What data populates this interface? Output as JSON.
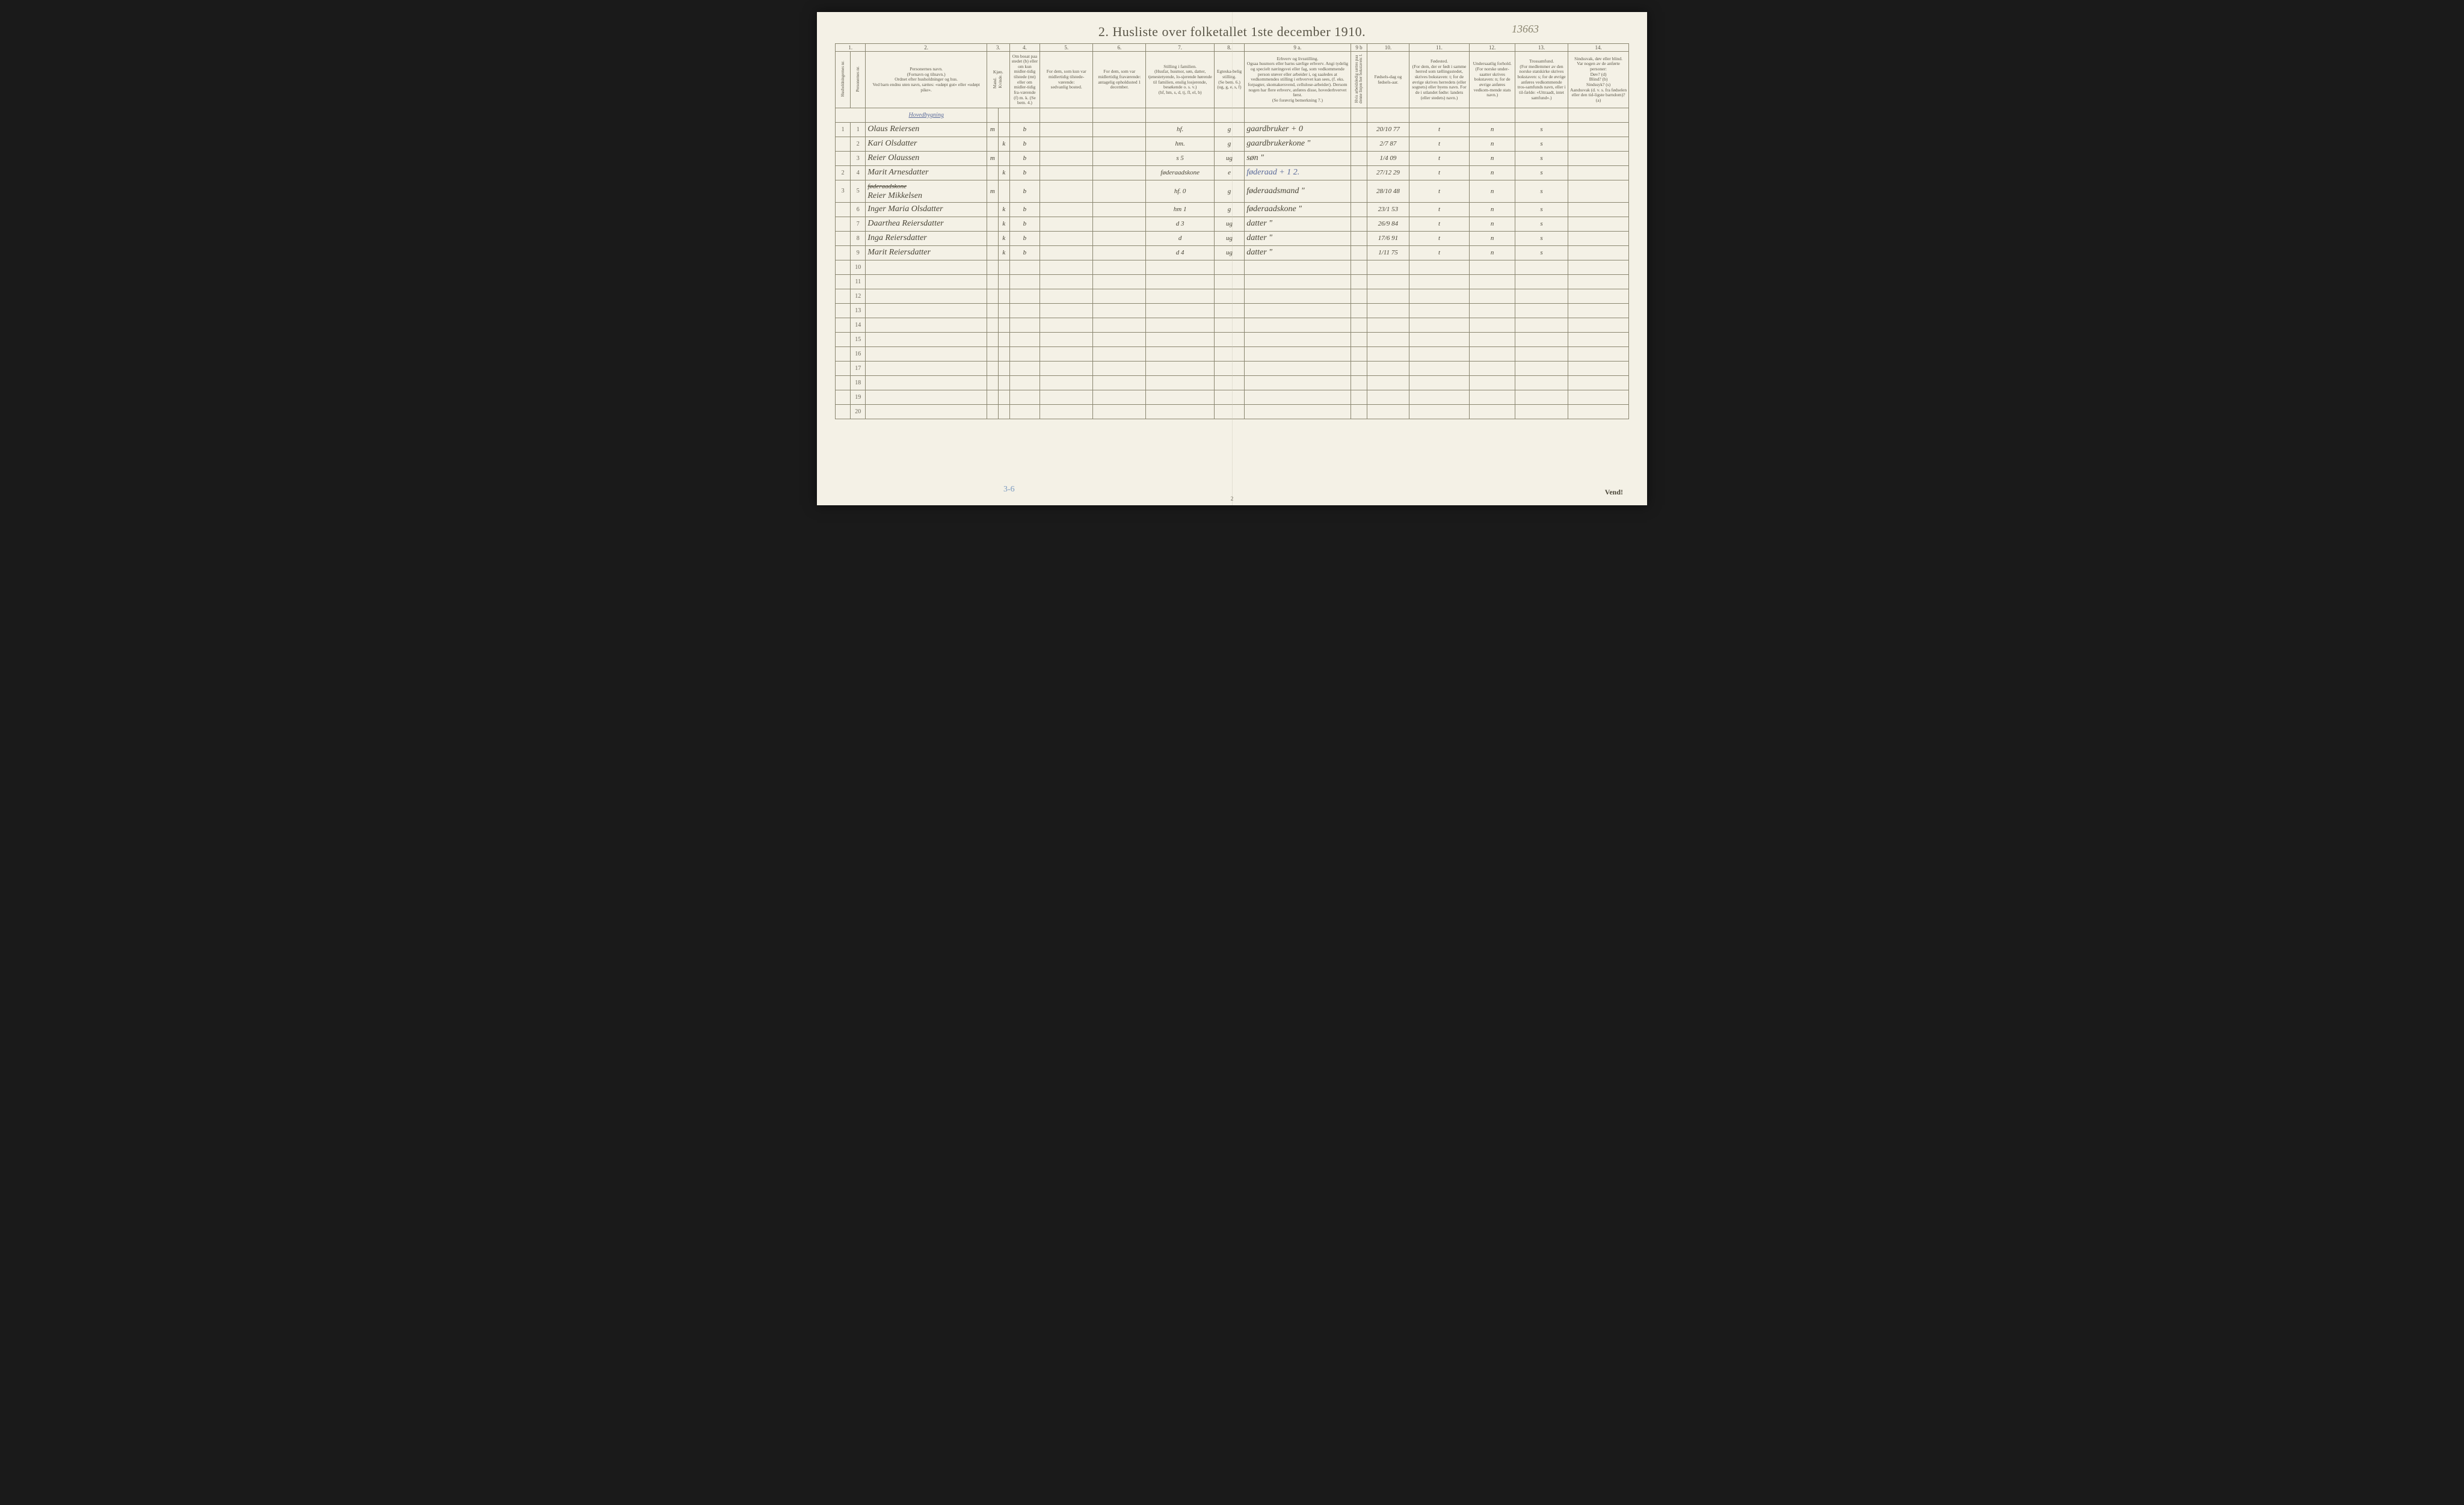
{
  "document": {
    "pencil_id": "13663",
    "title": "2.  Husliste over folketallet 1ste december 1910.",
    "footer_vend": "Vend!",
    "page_number": "2",
    "pencil_bottom": "3-6"
  },
  "colors": {
    "paper": "#f4f1e6",
    "ink": "#5a5648",
    "rule": "#8a8670",
    "handwriting": "#4a4638",
    "blue_ink": "#5a6a9a",
    "pencil": "#8a8570",
    "background": "#1a1a1a"
  },
  "columns": {
    "numbers": [
      "1.",
      "2.",
      "3.",
      "4.",
      "5.",
      "6.",
      "7.",
      "8.",
      "9 a.",
      "9 b",
      "10.",
      "11.",
      "12.",
      "13.",
      "14."
    ],
    "widths_pct": [
      2,
      2,
      16,
      1.5,
      1.5,
      4,
      7,
      7,
      9,
      4,
      14,
      2.2,
      5.5,
      8,
      6,
      7,
      8
    ],
    "headers": [
      {
        "text": "Husholdningernes nr.",
        "vertical": true
      },
      {
        "text": "Personernes nr.",
        "vertical": true
      },
      {
        "text": "Personernes navn.\n(Fornavn og tilnavn.)\nOrdnet efter husholdninger og hus.\nVed barn endnu uten navn, sættes: «udøpt gut» eller «udøpt pike»."
      },
      {
        "text": "Kjøn.",
        "sub": [
          "Mand.",
          "Kvinde."
        ],
        "sub_vertical": true
      },
      {
        "text": "Om bosat paa stedet (b) eller om kun midler-tidig tilstede (mt) eller om midler-tidig fra-værende (f) m. k. (Se bem. 4.)"
      },
      {
        "text": "For dem, som kun var midlertidig tilstede-værende:\nsedvanlig bosted."
      },
      {
        "text": "For dem, som var midlertidig fraværende:\nantagelig opholdssted 1 december."
      },
      {
        "text": "Stilling i familien.\n(Husfar, husmor, søn, datter, tjenestetyende, lo-sjerende hørende til familien, enslig losjerende, besøkende o. s. v.)\n(hf, hm, s, d, tj, fl, el, b)"
      },
      {
        "text": "Egteska-belig stilling.\n(Se bem. 6.)\n(ug, g, e, s, f)"
      },
      {
        "text": "Erhverv og livsstilling.\nOgsaa husmors eller barns særlige erhverv. Angi tydelig og specielt næringsvei eller fag, som vedkommende person utøver eller arbeider i, og saaledes at vedkommendes stilling i erhvervet kan sees, (f. eks. forpagter, skomakersvend, cellulose-arbeider). Dersom nogen har flere erhverv, anføres disse, hovederhvervet først.\n(Se forøvrig bemerkning 7.)"
      },
      {
        "text": "Hvis arbeidsledig sættes paa denne linjen her bokstaven: l.",
        "vertical": true
      },
      {
        "text": "Fødsels-dag og fødsels-aar."
      },
      {
        "text": "Fødested.\n(For dem, der er født i samme herred som tællingsstedet, skrives bokstaven: t; for de øvrige skrives herredets (eller sognets) eller byens navn. For de i utlandet fødte: landets (eller stedets) navn.)"
      },
      {
        "text": "Undersaatlig forhold.\n(For norske under-saatter skrives bokstaven: n; for de øvrige anføres vedkom-mende stats navn.)"
      },
      {
        "text": "Trossamfund.\n(For medlemmer av den norske statskirke skrives bokstaven: s; for de øvrige anføres vedkommende tros-samfunds navn, eller i til-fælde: «Uttraadt, intet samfund».)"
      },
      {
        "text": "Sindssvak, døv eller blind.\nVar nogen av de anførte personer:\nDøv?      (d)\nBlind?    (b)\nSindssyk? (s)\nAandssvak (d. v. s. fra fødselen eller den tid-ligste barndom)? (a)"
      }
    ]
  },
  "section_header": "Hovedbygning",
  "rows": [
    {
      "hnr": "1",
      "pnr": "1",
      "name": "Olaus Reiersen",
      "sex_m": "m",
      "sex_k": "",
      "bosat": "b",
      "c5": "",
      "c6": "",
      "stilling": "hf.",
      "egt": "g",
      "erhverv": "gaardbruker + 0",
      "c9b": "",
      "fodsel": "20/10 77",
      "fodested": "t",
      "under": "n",
      "tros": "s",
      "c14": ""
    },
    {
      "hnr": "",
      "pnr": "2",
      "name": "Kari Olsdatter",
      "sex_m": "",
      "sex_k": "k",
      "bosat": "b",
      "c5": "",
      "c6": "",
      "stilling": "hm.",
      "egt": "g",
      "erhverv": "gaardbrukerkone \"",
      "c9b": "",
      "fodsel": "2/7 87",
      "fodested": "t",
      "under": "n",
      "tros": "s",
      "c14": ""
    },
    {
      "hnr": "",
      "pnr": "3",
      "name": "Reier Olaussen",
      "sex_m": "m",
      "sex_k": "",
      "bosat": "b",
      "c5": "",
      "c6": "",
      "stilling": "s  5",
      "egt": "ug",
      "erhverv": "søn     \"",
      "c9b": "",
      "fodsel": "1/4 09",
      "fodested": "t",
      "under": "n",
      "tros": "s",
      "c14": ""
    },
    {
      "hnr": "2",
      "pnr": "4",
      "name": "Marit Arnesdatter",
      "sex_m": "",
      "sex_k": "k",
      "bosat": "b",
      "c5": "",
      "c6": "",
      "stilling": "føderaadskone",
      "egt": "e",
      "erhverv": "føderaad  + 1 2.",
      "c9b": "",
      "fodsel": "27/12 29",
      "fodested": "t",
      "under": "n",
      "tros": "s",
      "c14": "",
      "erhverv_blue": true
    },
    {
      "hnr": "3",
      "pnr": "5",
      "name": "Reier Mikkelsen",
      "name_strike": "føderaadskone",
      "sex_m": "m",
      "sex_k": "",
      "bosat": "b",
      "c5": "",
      "c6": "",
      "stilling": "hf.  0",
      "egt": "g",
      "erhverv": "føderaadsmand  \"",
      "c9b": "",
      "fodsel": "28/10 48",
      "fodested": "t",
      "under": "n",
      "tros": "s",
      "c14": ""
    },
    {
      "hnr": "",
      "pnr": "6",
      "name": "Inger Maria Olsdatter",
      "sex_m": "",
      "sex_k": "k",
      "bosat": "b",
      "c5": "",
      "c6": "",
      "stilling": "hm  1",
      "egt": "g",
      "erhverv": "føderaadskone  \"",
      "c9b": "",
      "fodsel": "23/1 53",
      "fodested": "t",
      "under": "n",
      "tros": "s",
      "c14": ""
    },
    {
      "hnr": "",
      "pnr": "7",
      "name": "Daarthea Reiersdatter",
      "sex_m": "",
      "sex_k": "k",
      "bosat": "b",
      "c5": "",
      "c6": "",
      "stilling": "d  3",
      "egt": "ug",
      "erhverv": "datter   \"",
      "c9b": "",
      "fodsel": "26/9 84",
      "fodested": "t",
      "under": "n",
      "tros": "s",
      "c14": ""
    },
    {
      "hnr": "",
      "pnr": "8",
      "name": "Inga Reiersdatter",
      "sex_m": "",
      "sex_k": "k",
      "bosat": "b",
      "c5": "",
      "c6": "",
      "stilling": "d",
      "egt": "ug",
      "erhverv": "datter   \"",
      "c9b": "",
      "fodsel": "17/6 91",
      "fodested": "t",
      "under": "n",
      "tros": "s",
      "c14": ""
    },
    {
      "hnr": "",
      "pnr": "9",
      "name": "Marit Reiersdatter",
      "sex_m": "",
      "sex_k": "k",
      "bosat": "b",
      "c5": "",
      "c6": "",
      "stilling": "d  4",
      "egt": "ug",
      "erhverv": "datter   \"",
      "c9b": "",
      "fodsel": "1/11 75",
      "fodested": "t",
      "under": "n",
      "tros": "s",
      "c14": ""
    }
  ],
  "empty_row_numbers": [
    "10",
    "11",
    "12",
    "13",
    "14",
    "15",
    "16",
    "17",
    "18",
    "19",
    "20"
  ]
}
